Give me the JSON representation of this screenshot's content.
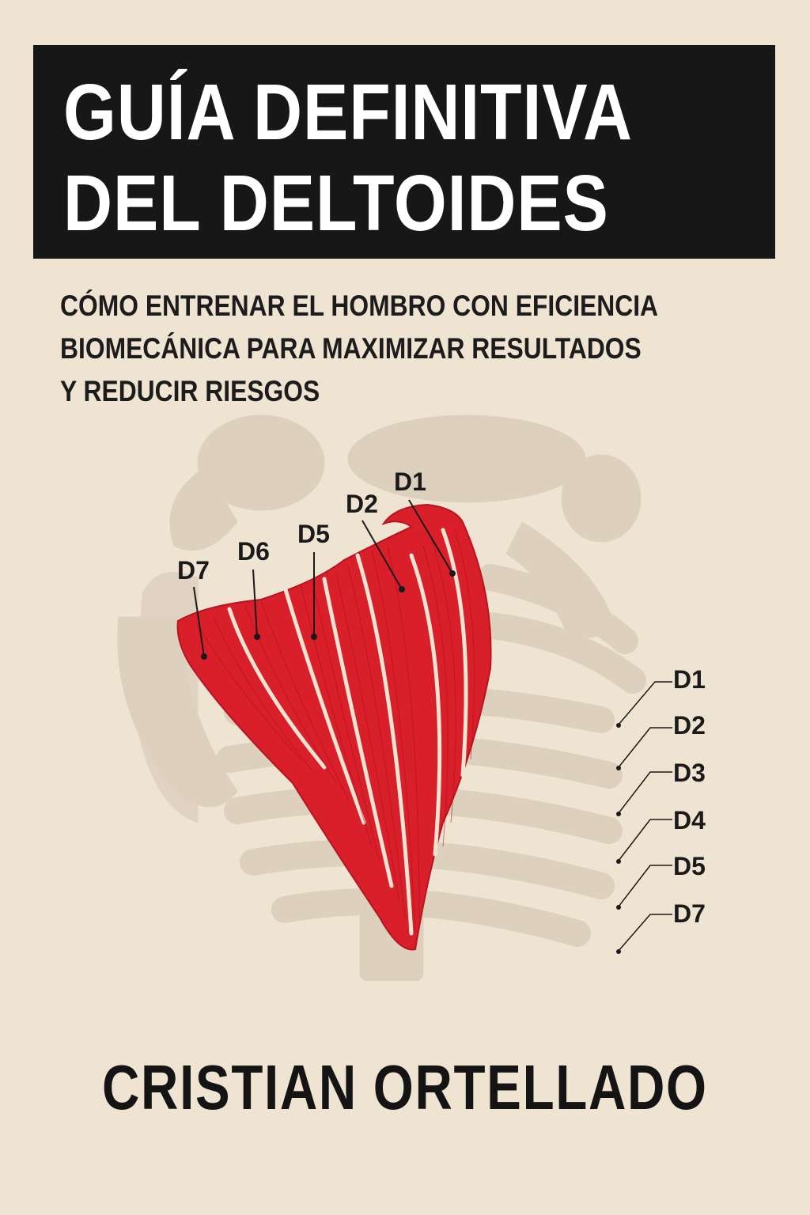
{
  "cover": {
    "title_lines": [
      "GUÍA DEFINITIVA",
      "DEL DELTOIDES"
    ],
    "subtitle_lines": [
      "CÓMO ENTRENAR EL HOMBRO CON EFICIENCIA",
      "BIOMECÁNICA PARA MAXIMIZAR RESULTADOS",
      "Y REDUCIR RIESGOS"
    ],
    "author": "CRISTIAN ORTELLADO"
  },
  "illustration": {
    "muscle_labels": [
      "D1",
      "D2",
      "D5",
      "D6",
      "D7"
    ],
    "legend_labels": [
      "D1",
      "D2",
      "D3",
      "D4",
      "D5",
      "D7"
    ]
  },
  "colors": {
    "background": "#efe4d2",
    "title_band": "#171717",
    "muscle_red": "#d81f2a",
    "skeleton_ghost": "#ddd0bd"
  }
}
